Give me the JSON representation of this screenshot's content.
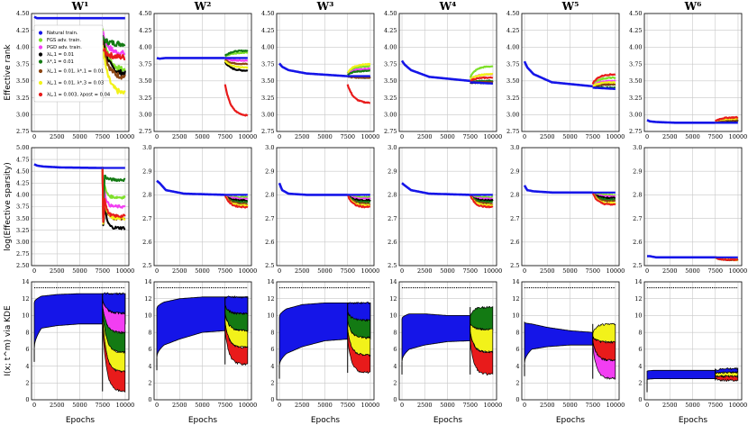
{
  "chart_data": {
    "type": "line",
    "columns": [
      "W¹",
      "W²",
      "W³",
      "W⁴",
      "W⁵",
      "W⁶"
    ],
    "row_ylabels": [
      "Effective rank",
      "log(Effective sparsity)",
      "I(x; t^m) via KDE"
    ],
    "xlabel": "Epochs",
    "x_ticks": [
      0,
      2500,
      5000,
      7500,
      10000
    ],
    "xlim": [
      -300,
      10400
    ],
    "row_ylims": [
      [
        2.75,
        4.5
      ],
      [
        2.5,
        3.0
      ],
      [
        0,
        14
      ]
    ],
    "row1_col1_ylim": [
      2.5,
      5.0
    ],
    "row_yticks": [
      [
        "2.75",
        "3.00",
        "3.25",
        "3.50",
        "3.75",
        "4.00",
        "4.25",
        "4.50"
      ],
      [
        "2.5",
        "2.6",
        "2.7",
        "2.8",
        "2.9",
        "3.0"
      ],
      [
        "0",
        "2",
        "4",
        "6",
        "8",
        "10",
        "12",
        "14"
      ]
    ],
    "row1_col1_yticks": [
      "2.50",
      "2.75",
      "3.00",
      "3.25",
      "3.50",
      "3.75",
      "4.00",
      "4.25",
      "4.50",
      "4.75",
      "5.00"
    ],
    "adv_start_epoch": 7500,
    "dotted_reference_line": 13.3,
    "legend": [
      {
        "label": "Natural train.",
        "color": "#1515e8"
      },
      {
        "label": "FGS adv. train.",
        "color": "#7ee02a"
      },
      {
        "label": "PGD adv. train.",
        "color": "#f23ef2"
      },
      {
        "label": "λL,1 = 0.01",
        "color": "#000000"
      },
      {
        "label": "λ*,1 = 0.01",
        "color": "#137a13"
      },
      {
        "label": "λL,1 = 0.01, λ*,1 = 0.01",
        "color": "#8b4513"
      },
      {
        "label": "λL,1 = 0.01, λ*,3 = 0.03",
        "color": "#f2f21a"
      },
      {
        "label": "λL,1 = 0.003, λpost = 0.04",
        "color": "#e81b1b"
      }
    ],
    "row0_natural_series": [
      {
        "column": "W¹",
        "x": [
          0,
          300,
          1000,
          3000,
          7500,
          10000
        ],
        "y": [
          4.45,
          4.43,
          4.43,
          4.43,
          4.43,
          4.43
        ]
      },
      {
        "column": "W²",
        "x": [
          0,
          300,
          1000,
          3000,
          7500,
          10000
        ],
        "y": [
          3.84,
          3.83,
          3.84,
          3.84,
          3.84,
          3.84
        ]
      },
      {
        "column": "W³",
        "x": [
          0,
          300,
          1000,
          3000,
          7500,
          10000
        ],
        "y": [
          3.76,
          3.71,
          3.66,
          3.61,
          3.57,
          3.57
        ]
      },
      {
        "column": "W⁴",
        "x": [
          0,
          300,
          1000,
          3000,
          7500,
          10000
        ],
        "y": [
          3.8,
          3.74,
          3.66,
          3.56,
          3.5,
          3.48
        ]
      },
      {
        "column": "W⁵",
        "x": [
          0,
          300,
          1000,
          3000,
          7500,
          10000
        ],
        "y": [
          3.79,
          3.7,
          3.6,
          3.48,
          3.42,
          3.4
        ]
      },
      {
        "column": "W⁶",
        "x": [
          0,
          300,
          1000,
          3000,
          7500,
          10000
        ],
        "y": [
          2.92,
          2.9,
          2.89,
          2.88,
          2.88,
          2.88
        ]
      }
    ],
    "row0_adv_end_values": [
      {
        "column": "W¹",
        "values": {
          "FGS": 3.65,
          "PGD": 3.9,
          "λL1": 3.6,
          "λ*1": 4.05,
          "λL1+λ*1": 3.55,
          "λL1+λ*3": 3.3,
          "λpost": 3.85
        }
      },
      {
        "column": "W²",
        "values": {
          "FGS": 3.92,
          "PGD": 3.8,
          "λL1": 3.65,
          "λ*1": 3.95,
          "λL1+λ*1": 3.75,
          "λL1+λ*3": 3.7,
          "λpost": 2.98
        }
      },
      {
        "column": "W³",
        "values": {
          "FGS": 3.72,
          "PGD": 3.68,
          "λL1": 3.55,
          "λ*1": 3.65,
          "λL1+λ*1": 3.55,
          "λL1+λ*3": 3.75,
          "λpost": 3.17
        }
      },
      {
        "column": "W⁴",
        "values": {
          "FGS": 3.72,
          "PGD": 3.6,
          "λL1": 3.47,
          "λ*1": 3.5,
          "λL1+λ*1": 3.48,
          "λL1+λ*3": 3.6,
          "λpost": 3.55
        }
      },
      {
        "column": "W⁵",
        "values": {
          "FGS": 3.55,
          "PGD": 3.5,
          "λL1": 3.45,
          "λ*1": 3.4,
          "λL1+λ*1": 3.45,
          "λL1+λ*3": 3.48,
          "λpost": 3.6
        }
      },
      {
        "column": "W⁶",
        "values": {
          "FGS": 2.95,
          "PGD": 2.93,
          "λL1": 2.9,
          "λ*1": 2.92,
          "λL1+λ*1": 2.92,
          "λL1+λ*3": 2.94,
          "λpost": 2.96
        }
      }
    ],
    "row1_natural_series": [
      {
        "column": "W¹",
        "x": [
          0,
          300,
          1000,
          3000,
          7500,
          10000
        ],
        "y": [
          4.65,
          4.62,
          4.6,
          4.58,
          4.57,
          4.57
        ]
      },
      {
        "column": "W²",
        "x": [
          0,
          300,
          1000,
          3000,
          7500,
          10000
        ],
        "y": [
          2.86,
          2.85,
          2.82,
          2.805,
          2.8,
          2.8
        ]
      },
      {
        "column": "W³",
        "x": [
          0,
          300,
          1000,
          3000,
          7500,
          10000
        ],
        "y": [
          2.85,
          2.82,
          2.805,
          2.8,
          2.8,
          2.8
        ]
      },
      {
        "column": "W⁴",
        "x": [
          0,
          300,
          1000,
          3000,
          7500,
          10000
        ],
        "y": [
          2.85,
          2.84,
          2.82,
          2.805,
          2.8,
          2.8
        ]
      },
      {
        "column": "W⁵",
        "x": [
          0,
          300,
          1000,
          3000,
          7500,
          10000
        ],
        "y": [
          2.84,
          2.82,
          2.815,
          2.81,
          2.81,
          2.81
        ]
      },
      {
        "column": "W⁶",
        "x": [
          0,
          300,
          1000,
          3000,
          7500,
          10000
        ],
        "y": [
          2.54,
          2.54,
          2.535,
          2.535,
          2.535,
          2.535
        ]
      }
    ],
    "row2_natural_band": [
      {
        "column": "W¹",
        "upper": [
          11.5,
          12.3,
          12.5,
          12.6,
          12.6
        ],
        "lower": [
          6.0,
          8.5,
          8.8,
          9.0,
          9.0
        ]
      },
      {
        "column": "W²",
        "upper": [
          10.8,
          11.6,
          12.0,
          12.2,
          12.2
        ],
        "lower": [
          5.0,
          6.5,
          7.2,
          8.0,
          8.2
        ]
      },
      {
        "column": "W³",
        "upper": [
          9.8,
          10.8,
          11.3,
          11.5,
          11.5
        ],
        "lower": [
          4.0,
          5.5,
          6.3,
          7.0,
          7.2
        ]
      },
      {
        "column": "W⁴",
        "upper": [
          9.6,
          10.2,
          10.2,
          10.0,
          10.0
        ],
        "lower": [
          4.5,
          6.0,
          6.5,
          6.9,
          7.0
        ]
      },
      {
        "column": "W⁵",
        "upper": [
          9.2,
          9.0,
          8.6,
          8.2,
          8.0
        ],
        "lower": [
          4.3,
          6.0,
          6.3,
          6.5,
          6.5
        ]
      },
      {
        "column": "W⁶",
        "upper": [
          3.4,
          3.5,
          3.5,
          3.5,
          3.5
        ],
        "lower": [
          2.4,
          2.5,
          2.5,
          2.5,
          2.5
        ]
      }
    ]
  }
}
